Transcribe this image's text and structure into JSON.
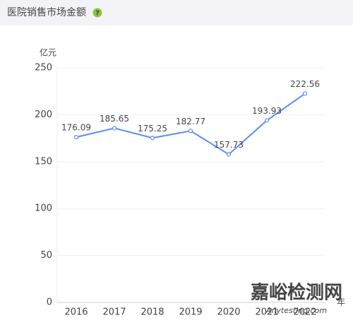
{
  "header": {
    "title": "医院销售市场金额"
  },
  "chart_data": {
    "type": "line",
    "y_unit": "亿元",
    "x_unit": "年",
    "categories": [
      "2016",
      "2017",
      "2018",
      "2019",
      "2020",
      "2021",
      "2022"
    ],
    "values": [
      176.09,
      185.65,
      175.25,
      182.77,
      157.73,
      193.93,
      222.56
    ],
    "color": "#5b8ff0",
    "ylim": [
      0,
      250
    ],
    "yticks": [
      0,
      50,
      100,
      150,
      200,
      250
    ],
    "grid": true
  },
  "watermark": {
    "title": "嘉峪检测网",
    "subtitle": "Anytesting.com"
  }
}
